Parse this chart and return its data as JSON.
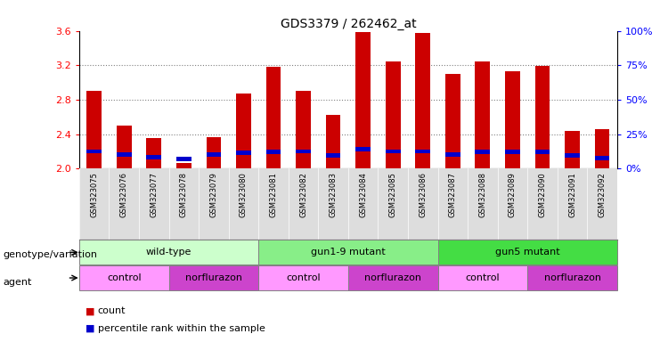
{
  "title": "GDS3379 / 262462_at",
  "samples": [
    "GSM323075",
    "GSM323076",
    "GSM323077",
    "GSM323078",
    "GSM323079",
    "GSM323080",
    "GSM323081",
    "GSM323082",
    "GSM323083",
    "GSM323084",
    "GSM323085",
    "GSM323086",
    "GSM323087",
    "GSM323088",
    "GSM323089",
    "GSM323090",
    "GSM323091",
    "GSM323092"
  ],
  "counts": [
    2.9,
    2.5,
    2.35,
    2.07,
    2.37,
    2.87,
    3.18,
    2.9,
    2.62,
    3.58,
    3.24,
    3.57,
    3.1,
    3.24,
    3.13,
    3.19,
    2.44,
    2.46
  ],
  "percentile_ranks_y": [
    2.175,
    2.14,
    2.11,
    2.09,
    2.14,
    2.16,
    2.17,
    2.175,
    2.13,
    2.2,
    2.175,
    2.175,
    2.14,
    2.17,
    2.17,
    2.17,
    2.13,
    2.1
  ],
  "ylim_left": [
    2.0,
    3.6
  ],
  "ylim_right": [
    0,
    100
  ],
  "yticks_left": [
    2.0,
    2.4,
    2.8,
    3.2,
    3.6
  ],
  "yticks_right": [
    0,
    25,
    50,
    75,
    100
  ],
  "ytick_labels_right": [
    "0%",
    "25%",
    "50%",
    "75%",
    "100%"
  ],
  "bar_color": "#cc0000",
  "percentile_color": "#0000cc",
  "bar_bottom": 2.0,
  "percentile_bar_height": 0.05,
  "genotype_groups": [
    {
      "label": "wild-type",
      "start": 0,
      "end": 5,
      "color": "#ccffcc"
    },
    {
      "label": "gun1-9 mutant",
      "start": 6,
      "end": 11,
      "color": "#88ee88"
    },
    {
      "label": "gun5 mutant",
      "start": 12,
      "end": 17,
      "color": "#44dd44"
    }
  ],
  "agent_groups": [
    {
      "label": "control",
      "start": 0,
      "end": 2,
      "color": "#ff99ff"
    },
    {
      "label": "norflurazon",
      "start": 3,
      "end": 5,
      "color": "#cc44cc"
    },
    {
      "label": "control",
      "start": 6,
      "end": 8,
      "color": "#ff99ff"
    },
    {
      "label": "norflurazon",
      "start": 9,
      "end": 11,
      "color": "#cc44cc"
    },
    {
      "label": "control",
      "start": 12,
      "end": 14,
      "color": "#ff99ff"
    },
    {
      "label": "norflurazon",
      "start": 15,
      "end": 17,
      "color": "#cc44cc"
    }
  ],
  "legend_items": [
    {
      "label": "count",
      "color": "#cc0000"
    },
    {
      "label": "percentile rank within the sample",
      "color": "#0000cc"
    }
  ],
  "grid_color": "#000000",
  "grid_linestyle": "dotted",
  "grid_linewidth": 0.8,
  "grid_alpha": 0.5,
  "title_fontsize": 10,
  "tick_fontsize": 8,
  "bar_width": 0.5
}
